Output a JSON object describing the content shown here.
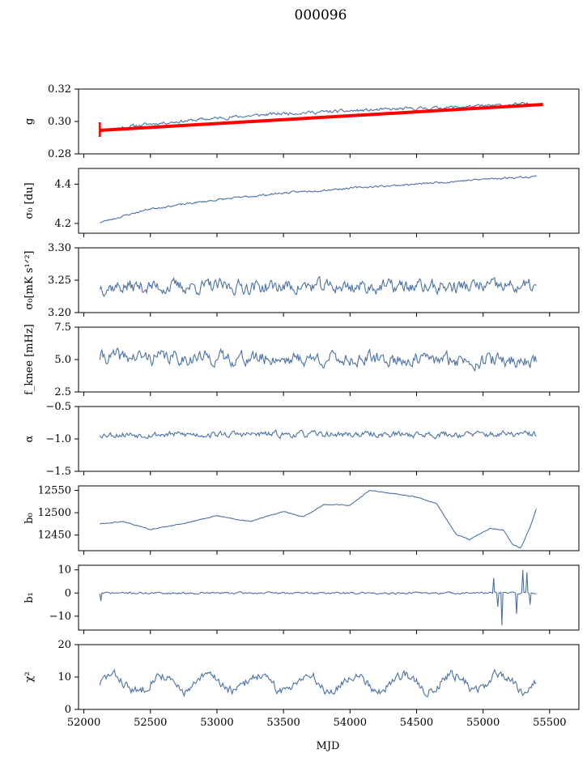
{
  "title": "000096",
  "xlabel": "MJD",
  "x_ticks": [
    52000,
    52500,
    53000,
    53500,
    54000,
    54500,
    55000,
    55500
  ],
  "x_range": [
    51960,
    55720
  ],
  "series_color": "#4c72a4",
  "fit_color": "#ff0000",
  "chart_data": [
    {
      "type": "line",
      "key": "g",
      "ylabel": "g",
      "ylim": [
        0.28,
        0.32
      ],
      "yticks": [
        "0.28",
        "0.30",
        "0.32"
      ],
      "x_start": 52120,
      "x_end": 55400,
      "n": 420,
      "noise": 0.0008,
      "seed": 11,
      "trend": [
        [
          52120,
          0.2945
        ],
        [
          52500,
          0.2985
        ],
        [
          53000,
          0.302
        ],
        [
          53500,
          0.305
        ],
        [
          54000,
          0.3065
        ],
        [
          54500,
          0.308
        ],
        [
          55000,
          0.3095
        ],
        [
          55400,
          0.311
        ]
      ],
      "fit": {
        "name": "fit",
        "x_start": 52120,
        "x_end": 55450,
        "y_start": 0.2945,
        "y_end": 0.3105
      }
    },
    {
      "type": "line",
      "key": "sigma0_du",
      "ylabel": "σ₀ [du]",
      "ylim": [
        4.15,
        4.48
      ],
      "yticks": [
        "4.2",
        "4.4"
      ],
      "x_start": 52120,
      "x_end": 55400,
      "n": 420,
      "noise": 0.004,
      "seed": 23,
      "trend": [
        [
          52120,
          4.205
        ],
        [
          52500,
          4.275
        ],
        [
          53000,
          4.32
        ],
        [
          53500,
          4.355
        ],
        [
          54000,
          4.38
        ],
        [
          54500,
          4.4
        ],
        [
          55000,
          4.425
        ],
        [
          55400,
          4.44
        ]
      ]
    },
    {
      "type": "line",
      "key": "sigma0_mK",
      "ylabel": "σ₀[mK s¹ᐟ²]",
      "ylim": [
        3.2,
        3.3
      ],
      "yticks": [
        "3.20",
        "3.25",
        "3.30"
      ],
      "x_start": 52120,
      "x_end": 55400,
      "n": 420,
      "noise": 0.009,
      "seed": 37,
      "trend": [
        [
          52120,
          3.24
        ],
        [
          55400,
          3.24
        ]
      ]
    },
    {
      "type": "line",
      "key": "fknee",
      "ylabel": "f_knee [mHz]",
      "ylim": [
        2.5,
        7.5
      ],
      "yticks": [
        "2.5",
        "5.0",
        "7.5"
      ],
      "x_start": 52120,
      "x_end": 55400,
      "n": 420,
      "noise": 0.45,
      "seed": 41,
      "trend": [
        [
          52120,
          5.2
        ],
        [
          55400,
          4.9
        ]
      ]
    },
    {
      "type": "line",
      "key": "alpha",
      "ylabel": "α",
      "ylim": [
        -1.5,
        -0.5
      ],
      "yticks": [
        "−1.5",
        "−1.0",
        "−0.5"
      ],
      "x_start": 52120,
      "x_end": 55400,
      "n": 420,
      "noise": 0.04,
      "seed": 53,
      "trend": [
        [
          52120,
          -0.93
        ],
        [
          55400,
          -0.93
        ]
      ]
    },
    {
      "type": "line",
      "key": "b0",
      "ylabel": "b₀",
      "ylim": [
        12415,
        12560
      ],
      "yticks": [
        "12450",
        "12500",
        "12550"
      ],
      "x_start": 52120,
      "x_end": 55400,
      "n": 420,
      "noise": 0.8,
      "seed": 61,
      "trend": [
        [
          52120,
          12475
        ],
        [
          52300,
          12480
        ],
        [
          52500,
          12462
        ],
        [
          52750,
          12476
        ],
        [
          53000,
          12493
        ],
        [
          53250,
          12480
        ],
        [
          53500,
          12503
        ],
        [
          53650,
          12490
        ],
        [
          53800,
          12518
        ],
        [
          54000,
          12517
        ],
        [
          54150,
          12550
        ],
        [
          54350,
          12542
        ],
        [
          54500,
          12535
        ],
        [
          54650,
          12520
        ],
        [
          54800,
          12450
        ],
        [
          54900,
          12440
        ],
        [
          55050,
          12465
        ],
        [
          55150,
          12462
        ],
        [
          55220,
          12430
        ],
        [
          55280,
          12420
        ],
        [
          55350,
          12465
        ],
        [
          55400,
          12508
        ]
      ]
    },
    {
      "type": "line",
      "key": "b1",
      "ylabel": "b₁",
      "ylim": [
        -16,
        12
      ],
      "yticks": [
        "−10",
        "0",
        "10"
      ],
      "x_start": 52120,
      "x_end": 55400,
      "n": 420,
      "noise": 0.35,
      "seed": 71,
      "trend": [
        [
          52120,
          0
        ],
        [
          55400,
          0
        ]
      ],
      "spikes": [
        [
          52125,
          -3.5
        ],
        [
          55080,
          6.5
        ],
        [
          55110,
          -6
        ],
        [
          55140,
          -14
        ],
        [
          55250,
          -9
        ],
        [
          55300,
          10
        ],
        [
          55330,
          9
        ],
        [
          55350,
          -5
        ]
      ]
    },
    {
      "type": "line",
      "key": "chi2",
      "ylabel": "χ²",
      "ylim": [
        0,
        20
      ],
      "yticks": [
        "0",
        "10",
        "20"
      ],
      "x_start": 52120,
      "x_end": 55400,
      "n": 420,
      "noise": 1.2,
      "seed": 83,
      "trend": [
        [
          52120,
          8
        ],
        [
          55400,
          8.5
        ]
      ],
      "seasonal": {
        "amplitude": 2.5,
        "period": 365.25
      }
    }
  ]
}
